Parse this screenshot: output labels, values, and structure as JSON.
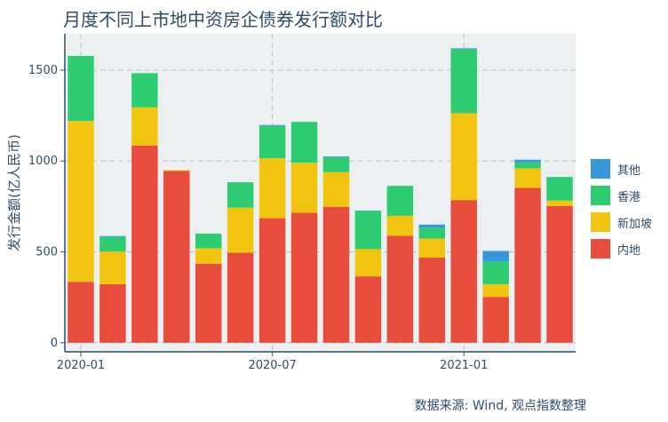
{
  "source": "数据来源: Wind, 观点指数整理",
  "chart_data": {
    "type": "bar",
    "stacked": true,
    "title": "月度不同上市地中资房企债券发行额对比",
    "ylabel": "发行金额(亿人民币)",
    "xlabel": "",
    "ylim": [
      -50,
      1700
    ],
    "yticks": [
      0,
      500,
      1000,
      1500
    ],
    "xticks": [
      {
        "label": "2020-01",
        "index": 0
      },
      {
        "label": "2020-07",
        "index": 6
      },
      {
        "label": "2021-01",
        "index": 12
      }
    ],
    "categories": [
      "2020-01",
      "2020-02",
      "2020-03",
      "2020-04",
      "2020-05",
      "2020-06",
      "2020-07",
      "2020-08",
      "2020-09",
      "2020-10",
      "2020-11",
      "2020-12",
      "2021-01",
      "2021-02",
      "2021-03",
      "2021-04"
    ],
    "series": [
      {
        "name": "内地",
        "color": "#e74c3c",
        "values": [
          335,
          322,
          1085,
          945,
          435,
          495,
          685,
          715,
          748,
          365,
          588,
          468,
          785,
          252,
          852,
          752
        ]
      },
      {
        "name": "新加坡",
        "color": "#f1c40f",
        "values": [
          885,
          180,
          210,
          5,
          85,
          248,
          330,
          275,
          190,
          150,
          110,
          105,
          478,
          70,
          108,
          30
        ]
      },
      {
        "name": "香港",
        "color": "#2ecc71",
        "values": [
          358,
          80,
          188,
          0,
          80,
          140,
          178,
          225,
          82,
          210,
          165,
          60,
          352,
          125,
          32,
          130
        ]
      },
      {
        "name": "其他",
        "color": "#3498db",
        "values": [
          0,
          5,
          0,
          0,
          0,
          0,
          5,
          0,
          5,
          2,
          0,
          17,
          5,
          58,
          15,
          0
        ]
      }
    ],
    "legend_order": [
      "其他",
      "香港",
      "新加坡",
      "内地"
    ],
    "legend_position": "right",
    "grid": true,
    "plot_background": "#ecf0f1"
  }
}
